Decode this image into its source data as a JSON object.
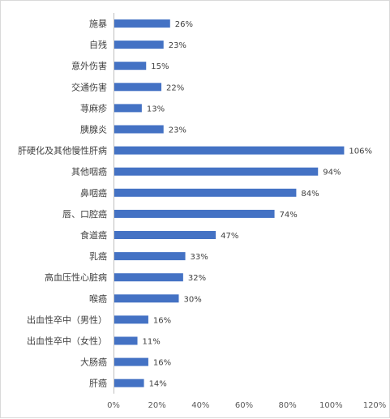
{
  "chart_data": {
    "type": "bar",
    "orientation": "horizontal",
    "title": "",
    "xlabel": "",
    "ylabel": "",
    "categories": [
      "施暴",
      "自残",
      "意外伤害",
      "交通伤害",
      "荨麻疹",
      "胰腺炎",
      "肝硬化及其他慢性肝病",
      "其他咽癌",
      "鼻咽癌",
      "唇、口腔癌",
      "食道癌",
      "乳癌",
      "高血压性心脏病",
      "喉癌",
      "出血性卒中（男性）",
      "出血性卒中（女性）",
      "大肠癌",
      "肝癌"
    ],
    "values": [
      26,
      23,
      15,
      22,
      13,
      23,
      106,
      94,
      84,
      74,
      47,
      33,
      32,
      30,
      16,
      11,
      16,
      14
    ],
    "data_labels": [
      "26%",
      "23%",
      "15%",
      "22%",
      "13%",
      "23%",
      "106%",
      "94%",
      "84%",
      "74%",
      "47%",
      "33%",
      "32%",
      "30%",
      "16%",
      "11%",
      "16%",
      "14%"
    ],
    "xlim": [
      0,
      120
    ],
    "xticks": [
      0,
      20,
      40,
      60,
      80,
      100,
      120
    ],
    "xtick_labels": [
      "0%",
      "20%",
      "40%",
      "60%",
      "80%",
      "100%",
      "120%"
    ],
    "bar_color": "#4472C4",
    "grid": false,
    "legend": "none"
  }
}
